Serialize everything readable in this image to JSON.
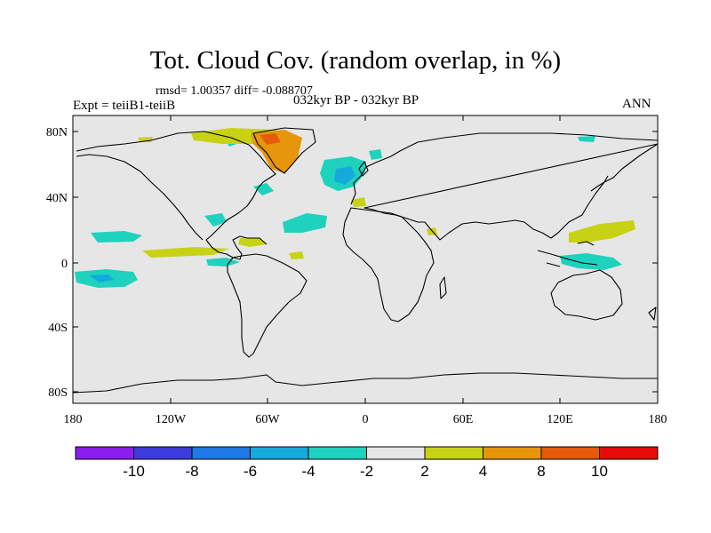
{
  "title": "Tot. Cloud Cov. (random overlap, in %)",
  "stats": "rmsd= 1.00357 diff= -0.088707",
  "left_label": "Expt = teiiB1-teiiB",
  "center_label": "032kyr BP - 032kyr BP",
  "right_label": "ANN",
  "lat_ticks": [
    "80N",
    "40N",
    "0",
    "40S",
    "80S"
  ],
  "lon_ticks": [
    "180",
    "120W",
    "60W",
    "0",
    "60E",
    "120E",
    "180"
  ],
  "colorbar": {
    "levels": [
      "-10",
      "-8",
      "-6",
      "-4",
      "-2",
      "2",
      "4",
      "8",
      "10"
    ],
    "colors": [
      "#8a1ef0",
      "#3c3cdc",
      "#1e78e6",
      "#14aadc",
      "#1ed2be",
      "#e6e6e6",
      "#c8d214",
      "#e6960a",
      "#e65a0a",
      "#e60a0a"
    ]
  },
  "colors": {
    "map_background": "#e6e6e6",
    "coast": "#000000"
  }
}
